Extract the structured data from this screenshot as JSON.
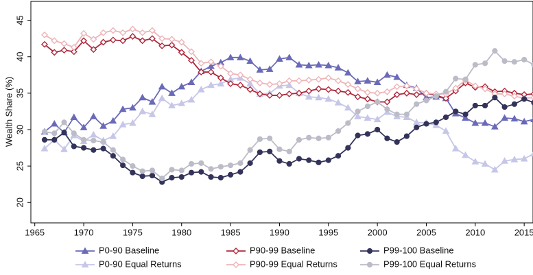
{
  "chart_data": {
    "type": "line",
    "y_label": "Wealth Share (%)",
    "x": [
      1966,
      1967,
      1968,
      1969,
      1970,
      1971,
      1972,
      1973,
      1974,
      1975,
      1976,
      1977,
      1978,
      1979,
      1980,
      1981,
      1982,
      1983,
      1984,
      1985,
      1986,
      1987,
      1988,
      1989,
      1990,
      1991,
      1992,
      1993,
      1994,
      1995,
      1996,
      1997,
      1998,
      1999,
      2000,
      2001,
      2002,
      2003,
      2004,
      2005,
      2006,
      2007,
      2008,
      2009,
      2010,
      2011,
      2012,
      2013,
      2014,
      2015,
      2016
    ],
    "xlim": [
      1964.6,
      2015.9
    ],
    "xticks": [
      1965,
      1970,
      1975,
      1980,
      1985,
      1990,
      1995,
      2000,
      2005,
      2010,
      2015
    ],
    "ylim": [
      17.2,
      47.6
    ],
    "yticks": [
      20,
      25,
      30,
      35,
      40,
      45
    ],
    "series": [
      {
        "name": "P0-90 Baseline",
        "color": "#6a6ab8",
        "marker": "triangle",
        "values": [
          29.7,
          30.8,
          29.6,
          31.7,
          30.3,
          31.8,
          30.5,
          31.2,
          32.8,
          33.0,
          34.4,
          33.8,
          35.9,
          35.0,
          35.9,
          36.5,
          38.0,
          38.7,
          39.2,
          39.9,
          39.9,
          39.4,
          38.2,
          38.3,
          39.7,
          39.9,
          38.9,
          38.8,
          38.9,
          38.8,
          38.5,
          37.8,
          36.6,
          36.7,
          36.5,
          37.5,
          37.2,
          36.1,
          35.7,
          34.4,
          34.5,
          34.3,
          32.2,
          31.6,
          30.9,
          30.9,
          30.4,
          31.6,
          31.5,
          31.1,
          31.4
        ]
      },
      {
        "name": "P0-90 Equal Returns",
        "color": "#c6c6e8",
        "marker": "triangle",
        "values": [
          27.4,
          28.6,
          27.3,
          29.2,
          28.4,
          29.3,
          28.5,
          29.1,
          30.7,
          30.9,
          32.5,
          32.1,
          34.3,
          33.3,
          33.6,
          34.1,
          35.5,
          36.1,
          36.3,
          36.9,
          37.1,
          36.3,
          34.9,
          35.0,
          36.0,
          36.1,
          35.0,
          34.5,
          34.4,
          34.2,
          33.7,
          33.0,
          31.8,
          31.6,
          31.4,
          32.4,
          31.8,
          31.7,
          31.0,
          30.9,
          30.6,
          29.8,
          27.4,
          26.5,
          25.6,
          25.3,
          24.5,
          25.7,
          25.9,
          26.0,
          26.7
        ]
      },
      {
        "name": "P90-99 Baseline",
        "color": "#b0273a",
        "marker": "diamond",
        "values": [
          41.7,
          40.6,
          40.9,
          40.7,
          42.2,
          41.0,
          42.0,
          42.3,
          42.2,
          42.8,
          42.2,
          42.5,
          41.5,
          41.6,
          40.6,
          39.5,
          37.9,
          37.9,
          37.1,
          36.3,
          36.1,
          35.5,
          34.9,
          34.7,
          34.7,
          34.9,
          35.0,
          35.3,
          35.6,
          35.5,
          35.3,
          35.1,
          34.5,
          34.2,
          33.8,
          33.8,
          34.8,
          35.0,
          34.8,
          35.0,
          34.7,
          34.3,
          35.3,
          36.4,
          35.8,
          35.9,
          35.2,
          35.3,
          35.0,
          34.8,
          34.9
        ]
      },
      {
        "name": "P90-99 Equal Returns",
        "color": "#eeb4b8",
        "marker": "diamond",
        "values": [
          43.0,
          42.2,
          41.8,
          41.3,
          43.2,
          42.4,
          43.3,
          43.6,
          43.3,
          43.8,
          43.3,
          43.6,
          42.5,
          42.4,
          42.0,
          40.7,
          39.1,
          39.3,
          38.7,
          37.7,
          37.5,
          36.9,
          36.4,
          36.2,
          36.3,
          36.7,
          36.7,
          36.8,
          36.9,
          37.1,
          36.7,
          36.2,
          35.6,
          35.1,
          35.0,
          35.2,
          35.9,
          36.0,
          35.6,
          35.0,
          34.9,
          34.9,
          35.7,
          36.8,
          36.0,
          35.6,
          34.9,
          34.9,
          34.6,
          34.3,
          34.4
        ]
      },
      {
        "name": "P99-100 Baseline",
        "color": "#33335a",
        "marker": "circle",
        "values": [
          28.6,
          28.6,
          29.6,
          27.7,
          27.5,
          27.2,
          27.4,
          26.4,
          25.1,
          24.1,
          23.6,
          23.7,
          22.8,
          23.4,
          23.5,
          24.1,
          24.2,
          23.5,
          23.4,
          23.8,
          24.2,
          25.4,
          26.9,
          27.0,
          25.7,
          25.3,
          26.0,
          25.8,
          25.5,
          25.8,
          26.4,
          27.5,
          29.2,
          29.4,
          30.0,
          28.8,
          28.3,
          29.1,
          30.3,
          30.8,
          31.0,
          31.7,
          32.5,
          32.1,
          33.3,
          33.3,
          34.4,
          33.1,
          33.5,
          34.2,
          33.7
        ]
      },
      {
        "name": "P99-100 Equal Returns",
        "color": "#bcbcc8",
        "marker": "circle",
        "values": [
          29.7,
          29.5,
          31.0,
          29.5,
          28.6,
          28.5,
          28.3,
          27.2,
          25.9,
          25.0,
          24.3,
          24.4,
          23.3,
          24.5,
          24.4,
          25.3,
          25.4,
          24.6,
          24.9,
          25.1,
          25.4,
          27.2,
          28.7,
          28.8,
          27.3,
          27.0,
          28.6,
          28.9,
          28.8,
          28.9,
          29.8,
          30.9,
          32.5,
          33.2,
          33.8,
          32.8,
          32.1,
          32.1,
          33.5,
          34.0,
          34.6,
          35.2,
          37.0,
          36.9,
          38.9,
          39.1,
          40.8,
          39.4,
          39.3,
          39.6,
          38.9
        ]
      }
    ],
    "legend": "bottom"
  }
}
